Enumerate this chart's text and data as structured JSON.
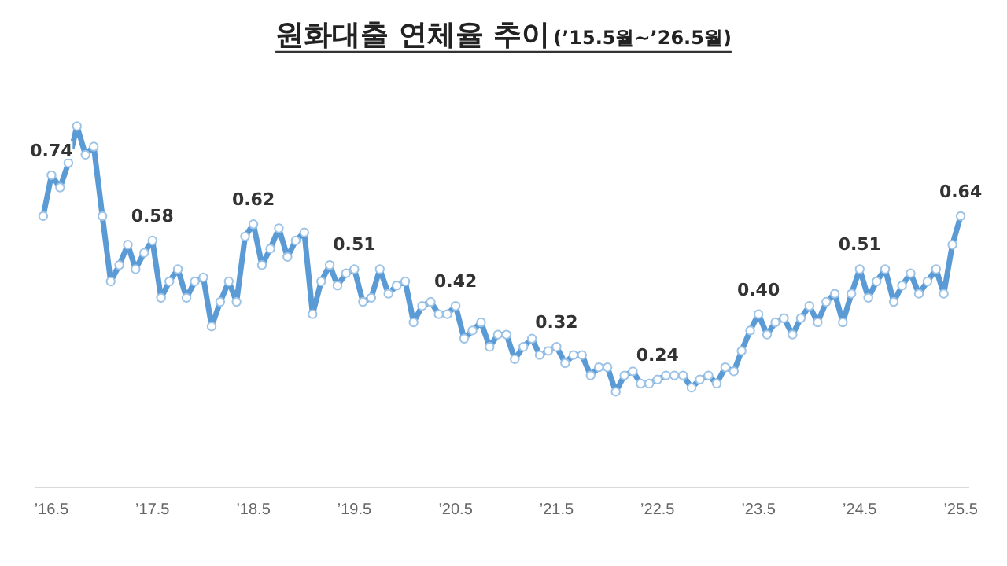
{
  "chart_data": {
    "type": "line",
    "title": "원화대출 연체율 추이",
    "subtitle": "(’15.5월~’26.5월)",
    "x": [
      "2016-04",
      "2016-05",
      "2016-06",
      "2016-07",
      "2016-08",
      "2016-09",
      "2016-10",
      "2016-11",
      "2016-12",
      "2017-01",
      "2017-02",
      "2017-03",
      "2017-04",
      "2017-05",
      "2017-06",
      "2017-07",
      "2017-08",
      "2017-09",
      "2017-10",
      "2017-11",
      "2017-12",
      "2018-01",
      "2018-02",
      "2018-03",
      "2018-04",
      "2018-05",
      "2018-06",
      "2018-07",
      "2018-08",
      "2018-09",
      "2018-10",
      "2018-11",
      "2018-12",
      "2019-01",
      "2019-02",
      "2019-03",
      "2019-04",
      "2019-05",
      "2019-06",
      "2019-07",
      "2019-08",
      "2019-09",
      "2019-10",
      "2019-11",
      "2019-12",
      "2020-01",
      "2020-02",
      "2020-03",
      "2020-04",
      "2020-05",
      "2020-06",
      "2020-07",
      "2020-08",
      "2020-09",
      "2020-10",
      "2020-11",
      "2020-12",
      "2021-01",
      "2021-02",
      "2021-03",
      "2021-04",
      "2021-05",
      "2021-06",
      "2021-07",
      "2021-08",
      "2021-09",
      "2021-10",
      "2021-11",
      "2021-12",
      "2022-01",
      "2022-02",
      "2022-03",
      "2022-04",
      "2022-05",
      "2022-06",
      "2022-07",
      "2022-08",
      "2022-09",
      "2022-10",
      "2022-11",
      "2022-12",
      "2023-01",
      "2023-02",
      "2023-03",
      "2023-04",
      "2023-05",
      "2023-06",
      "2023-07",
      "2023-08",
      "2023-09",
      "2023-10",
      "2023-11",
      "2023-12",
      "2024-01",
      "2024-02",
      "2024-03",
      "2024-04",
      "2024-05",
      "2024-06",
      "2024-07",
      "2024-08",
      "2024-09",
      "2024-10",
      "2024-11",
      "2024-12",
      "2025-01",
      "2025-02",
      "2025-03",
      "2025-04",
      "2025-05"
    ],
    "series": [
      {
        "color": "#5b9bd5",
        "values": [
          0.64,
          0.74,
          0.71,
          0.77,
          0.86,
          0.79,
          0.81,
          0.64,
          0.48,
          0.52,
          0.57,
          0.51,
          0.55,
          0.58,
          0.44,
          0.48,
          0.51,
          0.44,
          0.48,
          0.49,
          0.37,
          0.43,
          0.48,
          0.43,
          0.59,
          0.62,
          0.52,
          0.56,
          0.61,
          0.54,
          0.58,
          0.6,
          0.4,
          0.48,
          0.52,
          0.47,
          0.5,
          0.51,
          0.43,
          0.44,
          0.51,
          0.45,
          0.47,
          0.48,
          0.38,
          0.42,
          0.43,
          0.4,
          0.4,
          0.42,
          0.34,
          0.36,
          0.38,
          0.32,
          0.35,
          0.35,
          0.29,
          0.32,
          0.34,
          0.3,
          0.31,
          0.32,
          0.28,
          0.3,
          0.3,
          0.25,
          0.27,
          0.27,
          0.21,
          0.25,
          0.26,
          0.23,
          0.23,
          0.24,
          0.25,
          0.25,
          0.25,
          0.22,
          0.24,
          0.25,
          0.23,
          0.27,
          0.26,
          0.31,
          0.36,
          0.4,
          0.35,
          0.38,
          0.39,
          0.35,
          0.39,
          0.42,
          0.38,
          0.43,
          0.45,
          0.38,
          0.45,
          0.51,
          0.44,
          0.48,
          0.51,
          0.43,
          0.47,
          0.5,
          0.45,
          0.48,
          0.51,
          0.45,
          0.57,
          0.64
        ],
        "value_labels": [
          null,
          "0.74",
          null,
          null,
          null,
          null,
          null,
          null,
          null,
          null,
          null,
          null,
          null,
          "0.58",
          null,
          null,
          null,
          null,
          null,
          null,
          null,
          null,
          null,
          null,
          null,
          "0.62",
          null,
          null,
          null,
          null,
          null,
          null,
          null,
          null,
          null,
          null,
          null,
          "0.51",
          null,
          null,
          null,
          null,
          null,
          null,
          null,
          null,
          null,
          null,
          null,
          "0.42",
          null,
          null,
          null,
          null,
          null,
          null,
          null,
          null,
          null,
          null,
          null,
          "0.32",
          null,
          null,
          null,
          null,
          null,
          null,
          null,
          null,
          null,
          null,
          null,
          "0.24",
          null,
          null,
          null,
          null,
          null,
          null,
          null,
          null,
          null,
          null,
          null,
          "0.40",
          null,
          null,
          null,
          null,
          null,
          null,
          null,
          null,
          null,
          null,
          null,
          "0.51",
          null,
          null,
          null,
          null,
          null,
          null,
          null,
          null,
          null,
          null,
          null,
          "0.64"
        ]
      }
    ],
    "xlim": [
      "2016-03",
      "2025-06"
    ],
    "xticks": [
      {
        "value": "2016-05",
        "label": "’16.5"
      },
      {
        "value": "2017-05",
        "label": "’17.5"
      },
      {
        "value": "2018-05",
        "label": "’18.5"
      },
      {
        "value": "2019-05",
        "label": "’19.5"
      },
      {
        "value": "2020-05",
        "label": "’20.5"
      },
      {
        "value": "2021-05",
        "label": "’21.5"
      },
      {
        "value": "2022-05",
        "label": "’22.5"
      },
      {
        "value": "2023-05",
        "label": "’23.5"
      },
      {
        "value": "2024-05",
        "label": "’24.5"
      },
      {
        "value": "2025-05",
        "label": "’25.5"
      }
    ],
    "tick_labels": "x",
    "marker": "circle"
  }
}
